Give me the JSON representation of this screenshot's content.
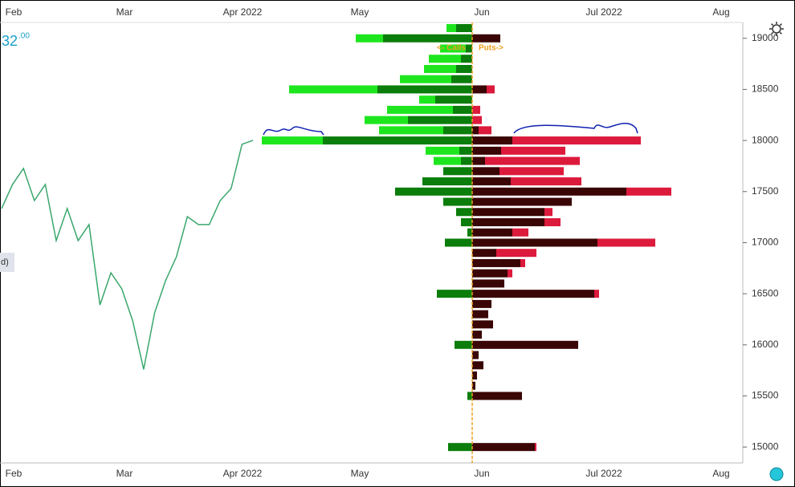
{
  "chart_data": {
    "type": "bar",
    "orientation": "horizontal",
    "price_label": "32",
    "price_label_sup": ".00",
    "side_label": "d)",
    "annotation_calls": "<- Calls",
    "annotation_puts": "Puts->",
    "x_labels": [
      "Feb",
      "Mar",
      "Apr 2022",
      "May",
      "Jun",
      "Jul 2022",
      "Aug"
    ],
    "ylim": [
      14860,
      19375
    ],
    "yticks": [
      15000,
      15500,
      16000,
      16500,
      17000,
      17500,
      18000,
      18500,
      19000
    ],
    "strikes": [
      19100,
      19000,
      18900,
      18800,
      18700,
      18600,
      18500,
      18400,
      18300,
      18200,
      18100,
      18000,
      17900,
      17800,
      17700,
      17600,
      17500,
      17400,
      17300,
      17200,
      17100,
      17000,
      16900,
      16800,
      16700,
      16600,
      16500,
      16400,
      16300,
      16200,
      16100,
      16000,
      15900,
      15800,
      15700,
      15600,
      15500,
      15000
    ],
    "series": [
      {
        "side": "left",
        "color": "#0a7d0a",
        "values": [
          20,
          111,
          8,
          14,
          20,
          26,
          118,
          46,
          24,
          80,
          36,
          186,
          16,
          14,
          36,
          62,
          96,
          36,
          20,
          14,
          6,
          34,
          0,
          0,
          0,
          0,
          44,
          0,
          0,
          0,
          0,
          22,
          0,
          0,
          0,
          0,
          6,
          30
        ]
      },
      {
        "side": "left",
        "color": "#1ee61e",
        "values": [
          12,
          34,
          32,
          40,
          40,
          64,
          110,
          20,
          82,
          54,
          80,
          76,
          42,
          34,
          0,
          0,
          0,
          0,
          0,
          0,
          0,
          0,
          0,
          0,
          0,
          0,
          0,
          0,
          0,
          0,
          0,
          0,
          0,
          0,
          0,
          0,
          0,
          0
        ]
      },
      {
        "side": "right",
        "color": "#3a0505",
        "values": [
          0,
          35,
          0,
          0,
          0,
          0,
          18,
          0,
          0,
          0,
          8,
          50,
          36,
          16,
          34,
          48,
          192,
          124,
          90,
          90,
          50,
          156,
          30,
          60,
          44,
          40,
          152,
          24,
          20,
          26,
          12,
          132,
          8,
          14,
          6,
          4,
          62,
          78
        ]
      },
      {
        "side": "right",
        "color": "#dc1a3c",
        "values": [
          0,
          0,
          0,
          0,
          0,
          0,
          10,
          0,
          10,
          12,
          16,
          160,
          80,
          118,
          80,
          88,
          56,
          0,
          10,
          20,
          20,
          72,
          50,
          6,
          6,
          0,
          6,
          0,
          0,
          0,
          0,
          0,
          0,
          0,
          0,
          0,
          0,
          2
        ]
      }
    ],
    "price_series": {
      "color": "#3aa76d",
      "values": [
        17334,
        17570,
        17727,
        17412,
        17570,
        17020,
        17334,
        17020,
        17177,
        16390,
        16705,
        16548,
        16233,
        15760,
        16312,
        16627,
        16862,
        17255,
        17177,
        17177,
        17412,
        17530,
        17963,
        18002
      ]
    }
  }
}
